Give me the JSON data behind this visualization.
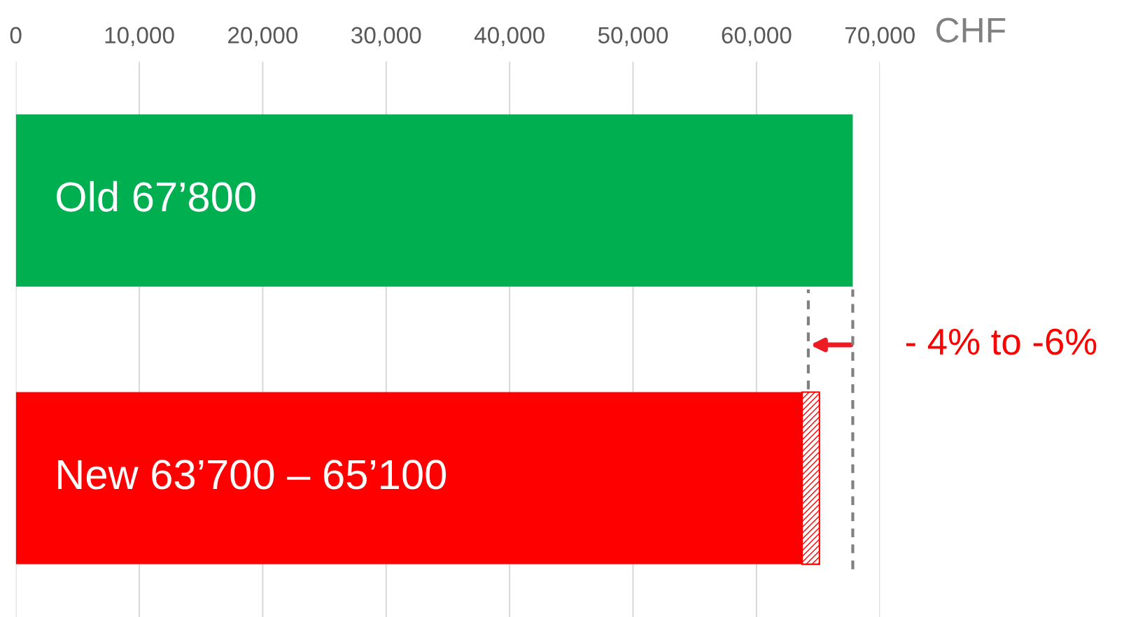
{
  "chart_data": {
    "type": "bar",
    "orientation": "horizontal",
    "stacked": true,
    "categories": [
      null,
      null
    ],
    "series": [
      {
        "colors": [
          "#00b050",
          "#ff0000"
        ],
        "values": [
          67800,
          63700
        ],
        "value_labels": [
          "Old 67’800",
          "New 63’700 – 65’100"
        ]
      },
      {
        "color": "#ff0000",
        "values": [
          null,
          1400
        ]
      }
    ],
    "xlabel": "CHF",
    "xlim": [
      0,
      70000
    ],
    "xticks": [
      0,
      {
        "value": 10000,
        "label": "10,000"
      },
      {
        "value": 20000,
        "label": "20,000"
      },
      {
        "value": 30000,
        "label": "30,000"
      },
      {
        "value": 40000,
        "label": "40,000"
      },
      {
        "value": 50000,
        "label": "50,000"
      },
      {
        "value": 60000,
        "label": "60,000"
      },
      {
        "value": 70000,
        "label": "70,000"
      }
    ],
    "grid": "x",
    "tick_labels": "x",
    "ref_lines": [
      {
        "axis": "x",
        "value": 64200,
        "color": "#808080",
        "line_style": "dashed"
      },
      {
        "axis": "x",
        "value": 67800,
        "color": "#808080",
        "line_style": "dashed"
      }
    ],
    "annotations": [
      "- 4% to -6%"
    ]
  }
}
